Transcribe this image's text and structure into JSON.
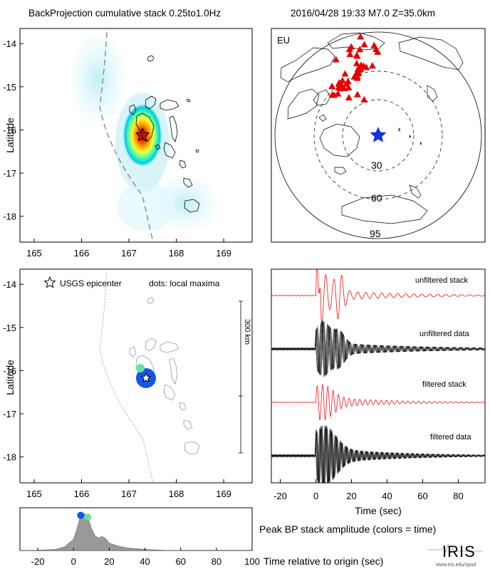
{
  "header": {
    "left_title": "BackProjection cumulative stack 0.25to1.0Hz",
    "right_title": "2016/04/28 19:33   M7.0  Z=35.0km"
  },
  "colors": {
    "red_triangle": "#e60000",
    "blue_star": "#1133dd",
    "blue_dot": "#1155ee",
    "green_dot": "#66e39a",
    "stack_trace": "#ee1111",
    "data_trace": "#000000",
    "hot_core": "#cc0000",
    "cool_halo": "#d8f4f8",
    "gray_area": "#999999"
  },
  "icons": {
    "epicenter": "star-icon",
    "logo": "iris-logo"
  },
  "chart_data": [
    {
      "type": "heatmap",
      "name": "backprojection-cumulative-map",
      "ylabel": "Latitude",
      "xlim": [
        164.7,
        169.6
      ],
      "ylim": [
        -18.6,
        -13.65
      ],
      "xticks": [
        165,
        166,
        167,
        168,
        169
      ],
      "yticks": [
        -14,
        -15,
        -16,
        -17,
        -18
      ],
      "peak": {
        "lon": 167.25,
        "lat": -16.05
      },
      "epicenter": {
        "lon": 167.3,
        "lat": -16.1
      }
    },
    {
      "type": "scatter",
      "name": "station-map",
      "network_label": "EU",
      "ring_labels": [
        "30",
        "60",
        "95"
      ],
      "ring_distances_deg": [
        30,
        60,
        95
      ],
      "station_count": 40
    },
    {
      "type": "scatter",
      "name": "local-maxima-map",
      "ylabel": "Latitude",
      "xlim": [
        164.7,
        169.6
      ],
      "ylim": [
        -18.6,
        -13.65
      ],
      "xticks": [
        165,
        166,
        167,
        168,
        169
      ],
      "yticks": [
        -14,
        -15,
        -16,
        -17,
        -18
      ],
      "legend": {
        "epicenter": "USGS epicenter",
        "dots": "dots: local maxima"
      },
      "scale_label": "300 km",
      "points": [
        {
          "lon": 167.2,
          "lat": -16.1,
          "time_s": 4,
          "color": "#1155ee",
          "size": "large"
        },
        {
          "lon": 167.15,
          "lat": -15.88,
          "time_s": 8,
          "color": "#66e39a",
          "size": "small"
        }
      ],
      "epicenter": {
        "lon": 167.3,
        "lat": -16.1
      }
    },
    {
      "type": "line",
      "name": "waveform-panel",
      "xlabel": "Time (sec)",
      "xlim": [
        -25,
        95
      ],
      "xticks": [
        -20,
        0,
        20,
        40,
        60,
        80
      ],
      "traces": [
        {
          "name": "unfiltered stack",
          "color": "#ee1111",
          "kind": "stack"
        },
        {
          "name": "unfiltered data",
          "color": "#000000",
          "kind": "bundle"
        },
        {
          "name": "filtered stack",
          "color": "#ee1111",
          "kind": "stack"
        },
        {
          "name": "filtered data",
          "color": "#000000",
          "kind": "bundle"
        }
      ]
    },
    {
      "type": "area",
      "name": "peak-bp-stack-amplitude",
      "title": "Peak BP stack amplitude (colors = time)",
      "xlabel": "Time relative to origin (sec)",
      "xlim": [
        -30,
        100
      ],
      "xticks": [
        -20,
        0,
        20,
        40,
        60,
        80,
        100
      ],
      "x": [
        -30,
        -20,
        -10,
        -5,
        0,
        2,
        4,
        6,
        8,
        10,
        12,
        14,
        16,
        18,
        20,
        25,
        30,
        35,
        40,
        50,
        60,
        100
      ],
      "y": [
        0.0,
        0.01,
        0.03,
        0.1,
        0.3,
        0.6,
        0.95,
        1.0,
        0.9,
        0.6,
        0.4,
        0.33,
        0.38,
        0.32,
        0.2,
        0.12,
        0.07,
        0.05,
        0.03,
        0.01,
        0.0,
        0.0
      ],
      "markers": [
        {
          "x": 4,
          "color": "#1155ee"
        },
        {
          "x": 8,
          "color": "#66e39a"
        }
      ]
    }
  ],
  "logo": {
    "text": "IRIS",
    "url": "www.iris.edu/spud"
  }
}
